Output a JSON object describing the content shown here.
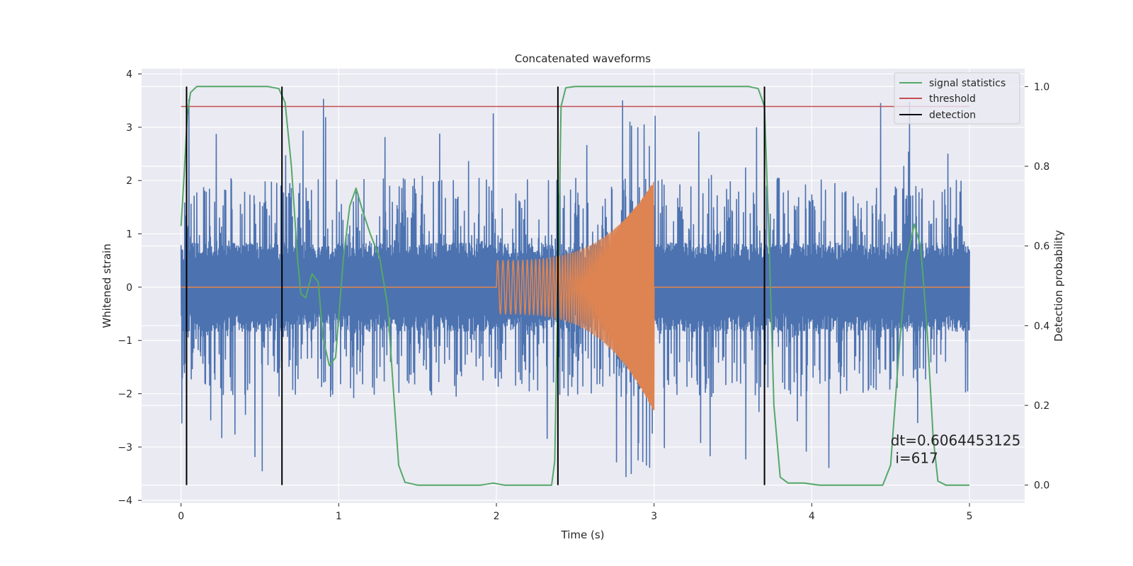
{
  "chart_data": {
    "type": "line",
    "title": "Concatenated waveforms",
    "xlabel": "Time (s)",
    "ylabel": "Whitened strain",
    "y2label": "Detection probability",
    "xlim": [
      -0.25,
      5.35
    ],
    "ylim": [
      -4.05,
      4.1
    ],
    "y2lim": [
      -0.045,
      1.045
    ],
    "xticks": [
      0,
      1,
      2,
      3,
      4,
      5
    ],
    "yticks": [
      -4,
      -3,
      -2,
      -1,
      0,
      1,
      2,
      3,
      4
    ],
    "y2ticks": [
      0.0,
      0.2,
      0.4,
      0.6,
      0.8,
      1.0
    ],
    "grid": true,
    "legend_position": "upper right",
    "series": [
      {
        "label": "",
        "axis": "left",
        "color": "#4c72b0",
        "kind": "noise",
        "x_range": [
          0,
          5
        ],
        "core_amplitude": 0.8,
        "typical_peak": 2.0,
        "max_abs": 3.7
      },
      {
        "label": "",
        "axis": "left",
        "color": "#dd8452",
        "kind": "chirp",
        "flat_value": 0,
        "chirp_start": 2.0,
        "chirp_end": 3.0,
        "start_amplitude": 0.5,
        "end_amplitude_pos": 2.0,
        "end_amplitude_neg": -2.35
      },
      {
        "name": "signal statistics",
        "axis": "right",
        "color": "#55a868",
        "points": [
          [
            0,
            0.65
          ],
          [
            0.02,
            0.78
          ],
          [
            0.04,
            0.93
          ],
          [
            0.06,
            0.985
          ],
          [
            0.1,
            1.0
          ],
          [
            0.55,
            1.0
          ],
          [
            0.62,
            0.995
          ],
          [
            0.66,
            0.96
          ],
          [
            0.7,
            0.8
          ],
          [
            0.74,
            0.56
          ],
          [
            0.76,
            0.48
          ],
          [
            0.79,
            0.47
          ],
          [
            0.83,
            0.53
          ],
          [
            0.87,
            0.51
          ],
          [
            0.9,
            0.37
          ],
          [
            0.94,
            0.3
          ],
          [
            0.98,
            0.32
          ],
          [
            1.03,
            0.57
          ],
          [
            1.07,
            0.7
          ],
          [
            1.11,
            0.745
          ],
          [
            1.15,
            0.69
          ],
          [
            1.2,
            0.63
          ],
          [
            1.26,
            0.57
          ],
          [
            1.31,
            0.45
          ],
          [
            1.35,
            0.22
          ],
          [
            1.38,
            0.05
          ],
          [
            1.42,
            0.007
          ],
          [
            1.5,
            0.0
          ],
          [
            1.9,
            0.0
          ],
          [
            1.98,
            0.005
          ],
          [
            2.05,
            0.0
          ],
          [
            2.35,
            0.0
          ],
          [
            2.37,
            0.06
          ],
          [
            2.39,
            0.5
          ],
          [
            2.41,
            0.95
          ],
          [
            2.44,
            0.997
          ],
          [
            2.5,
            1.0
          ],
          [
            3.6,
            1.0
          ],
          [
            3.66,
            0.995
          ],
          [
            3.7,
            0.95
          ],
          [
            3.73,
            0.6
          ],
          [
            3.76,
            0.2
          ],
          [
            3.8,
            0.02
          ],
          [
            3.85,
            0.005
          ],
          [
            3.95,
            0.005
          ],
          [
            4.05,
            0.0
          ],
          [
            4.45,
            0.0
          ],
          [
            4.5,
            0.05
          ],
          [
            4.55,
            0.32
          ],
          [
            4.6,
            0.56
          ],
          [
            4.65,
            0.655
          ],
          [
            4.69,
            0.6
          ],
          [
            4.73,
            0.4
          ],
          [
            4.77,
            0.12
          ],
          [
            4.8,
            0.01
          ],
          [
            4.85,
            0.0
          ],
          [
            5.0,
            0.0
          ]
        ]
      },
      {
        "name": "threshold",
        "axis": "right",
        "color": "#c44e52",
        "value": 0.95,
        "x_range": [
          0,
          5
        ]
      },
      {
        "name": "detection",
        "axis": "right",
        "color": "#000000",
        "x_values": [
          0.035,
          0.64,
          2.39,
          3.7
        ],
        "y_range": [
          0,
          1
        ]
      }
    ],
    "annotations": [
      {
        "text": "dt=0.6064453125",
        "x": 4.5,
        "y2": 0.1
      },
      {
        "text": "i=617",
        "x": 4.53,
        "y2": 0.055
      }
    ]
  }
}
